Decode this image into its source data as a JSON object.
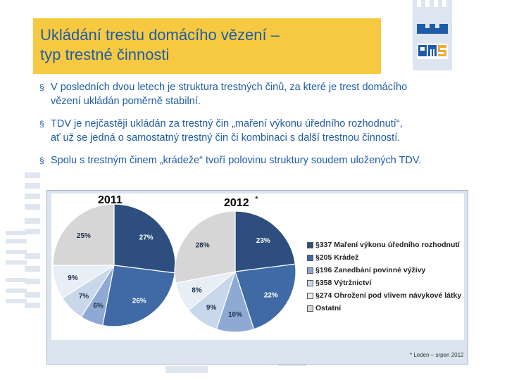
{
  "slide": {
    "title_line1": "Ukládání trestu domácího vězení –",
    "title_line2": "typ trestné činnosti",
    "logo_text": "PMS",
    "bullet_marker": "§",
    "bullets": [
      {
        "line1": "V posledních dvou letech je struktura trestných činů, za které je trest domácího",
        "line2": "vězení ukládán poměrně stabilní."
      },
      {
        "line1": "TDV je nejčastěji ukládán za trestný čin „maření výkonu úředního rozhodnutí“,",
        "line2": "ať už se jedná o samostatný trestný čin či kombinaci s další trestnou činností."
      },
      {
        "line1": "Spolu s trestným činem „krádeže“ tvoří polovinu struktury soudem uložených TDV.",
        "line2": ""
      }
    ],
    "colors": {
      "title_bg": "#f7c940",
      "title_text": "#1f5ca7",
      "bullet_text": "#1f5ca7"
    }
  },
  "chart_data": [
    {
      "type": "pie",
      "title": "2011",
      "categories": [
        "§337 Maření výkonu úředního rozhodnutí",
        "§205 Krádež",
        "§196 Zanedbání povinné výživy",
        "§358 Výtržnictví",
        "§274 Ohrožení pod vlivem návykové látky",
        "Ostatní"
      ],
      "values": [
        27,
        26,
        6,
        7,
        9,
        25
      ],
      "labels": [
        "27%",
        "26%",
        "6%",
        "7%",
        "9%",
        "25%"
      ]
    },
    {
      "type": "pie",
      "title": "2012",
      "title_marker": "*",
      "categories": [
        "§337 Maření výkonu úředního rozhodnutí",
        "§205 Krádež",
        "§196 Zanedbání povinné výživy",
        "§358 Výtržnictví",
        "§274 Ohrožení pod vlivem návykové látky",
        "Ostatní"
      ],
      "values": [
        23,
        22,
        10,
        9,
        8,
        28
      ],
      "labels": [
        "23%",
        "22%",
        "10%",
        "9%",
        "8%",
        "28%"
      ]
    }
  ],
  "legend": {
    "items": [
      {
        "label": "§337 Maření výkonu úředního rozhodnutí",
        "color": "#2d4e7e"
      },
      {
        "label": "§205 Krádež",
        "color": "#3f6aa6"
      },
      {
        "label": "§196 Zanedbání povinné výživy",
        "color": "#8eaad4"
      },
      {
        "label": "§358 Výtržnictví",
        "color": "#c8d7ea"
      },
      {
        "label": "§274 Ohrožení pod vlivem návykové látky",
        "color": "#e8eef6"
      },
      {
        "label": "Ostatní",
        "color": "#d6d6d6"
      }
    ]
  },
  "footnote": "* Leden – srpen 2012"
}
